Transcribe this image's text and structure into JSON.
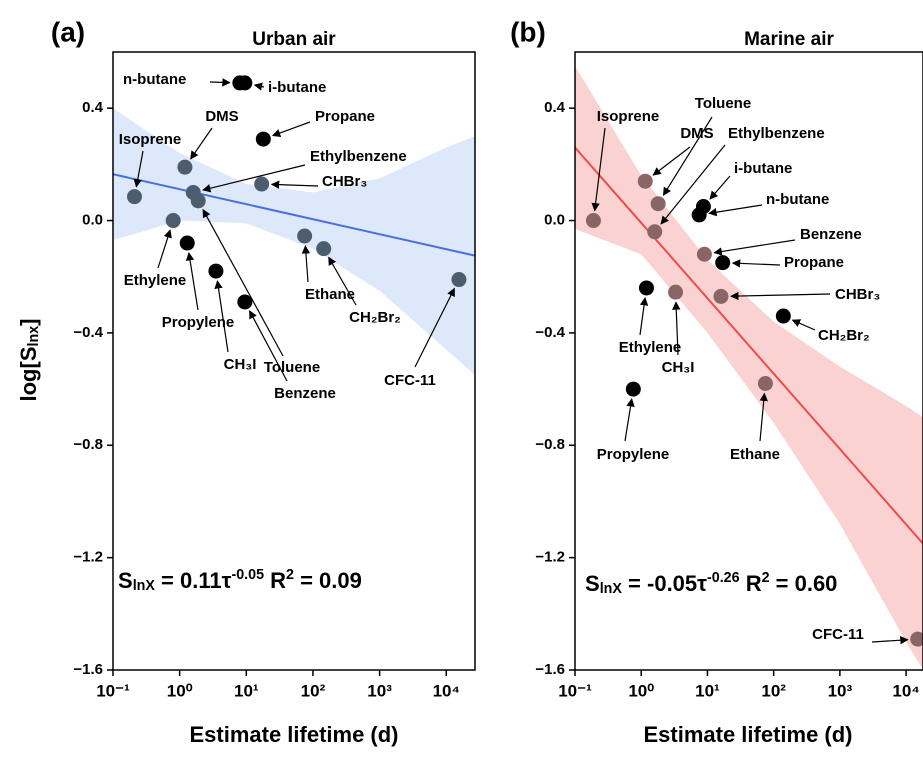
{
  "chart_data": [
    {
      "type": "scatter",
      "panel": "(a)",
      "title": "Urban air",
      "xlabel": "Estimate lifetime (d)",
      "ylabel": [
        "log[S",
        "lnx",
        "]"
      ],
      "xscale": "log",
      "xlim": [
        0.1,
        27000
      ],
      "ylim": [
        -1.6,
        0.6
      ],
      "xticks": [
        {
          "value": 0.1,
          "label": "10⁻¹"
        },
        {
          "value": 1,
          "label": "10⁰"
        },
        {
          "value": 10,
          "label": "10¹"
        },
        {
          "value": 100,
          "label": "10²"
        },
        {
          "value": 1000,
          "label": "10³"
        },
        {
          "value": 10000,
          "label": "10⁴"
        }
      ],
      "yticks": [
        0.4,
        {
          "value": 0,
          "label": "0.0"
        },
        {
          "value": -0.4,
          "label": "−0.4"
        },
        {
          "value": -0.8,
          "label": "−0.8"
        },
        {
          "value": -1.2,
          "label": "−1.2"
        },
        {
          "value": -1.6,
          "label": "−1.6"
        }
      ],
      "labels": [
        "n-butane",
        "i-butane",
        "Propane",
        "DMS",
        "Isoprene",
        "Ethylbenzene",
        "Toluene",
        "CHBr₃",
        "Ethylene",
        "Propylene",
        "CH₃I",
        "Benzene",
        "Ethane",
        "CH₂Br₂",
        "CFC-11"
      ],
      "x": [
        8,
        9.5,
        18,
        1.2,
        0.21,
        1.6,
        1.9,
        17,
        0.8,
        1.3,
        3.5,
        9.5,
        75,
        145,
        15500
      ],
      "values": [
        0.49,
        0.49,
        0.29,
        0.19,
        0.085,
        0.1,
        0.07,
        0.13,
        0.0,
        -0.08,
        -0.18,
        -0.29,
        -0.055,
        -0.1,
        -0.21
      ],
      "colors": [
        "#000000",
        "#000000",
        "#000000",
        "#4d5d70",
        "#4d5d70",
        "#4d5d70",
        "#4d5d70",
        "#4d5d70",
        "#4d5d70",
        "#000000",
        "#000000",
        "#000000",
        "#4d5d70",
        "#4d5d70",
        "#4d5d70"
      ],
      "fit": {
        "x": [
          0.1,
          27000
        ],
        "y": [
          0.165,
          -0.125
        ],
        "color": "#4a6ee0"
      },
      "band": {
        "x": [
          0.1,
          1,
          10,
          100,
          1000,
          10000,
          27000
        ],
        "upper": [
          0.4,
          0.24,
          0.13,
          0.1,
          0.15,
          0.26,
          0.3
        ],
        "lower": [
          -0.07,
          0.0,
          -0.01,
          -0.1,
          -0.25,
          -0.46,
          -0.55
        ],
        "color": "#dde8fb"
      },
      "equation": [
        "S",
        "lnX",
        " = 0.11τ",
        "-0.05",
        " R",
        "2",
        " = 0.09"
      ]
    },
    {
      "type": "scatter",
      "panel": "(b)",
      "title": "Marine air",
      "xlabel": "Estimate lifetime (d)",
      "xscale": "log",
      "xlim": [
        0.1,
        18000
      ],
      "ylim": [
        -1.6,
        0.6
      ],
      "xticks": [
        {
          "value": 0.1,
          "label": "10⁻¹"
        },
        {
          "value": 1,
          "label": "10⁰"
        },
        {
          "value": 10,
          "label": "10¹"
        },
        {
          "value": 100,
          "label": "10²"
        },
        {
          "value": 1000,
          "label": "10³"
        },
        {
          "value": 10000,
          "label": "10⁴"
        }
      ],
      "yticks": [
        0.4,
        {
          "value": 0,
          "label": "0.0"
        },
        {
          "value": -0.4,
          "label": "−0.4"
        },
        {
          "value": -0.8,
          "label": "−0.8"
        },
        {
          "value": -1.2,
          "label": "−1.2"
        },
        {
          "value": -1.6,
          "label": "−1.6"
        }
      ],
      "labels": [
        "Isoprene",
        "DMS",
        "Toluene",
        "Ethylbenzene",
        "i-butane",
        "n-butane",
        "Benzene",
        "Propane",
        "CHBr₃",
        "CH₂Br₂",
        "Ethylene",
        "CH₃I",
        "Ethane",
        "Propylene",
        "CFC-11"
      ],
      "x": [
        0.19,
        1.15,
        1.8,
        1.6,
        8.7,
        7.5,
        9,
        17,
        16,
        140,
        1.2,
        3.3,
        75,
        0.76,
        15000
      ],
      "values": [
        0.0,
        0.14,
        0.06,
        -0.04,
        0.05,
        0.02,
        -0.12,
        -0.15,
        -0.27,
        -0.34,
        -0.24,
        -0.255,
        -0.58,
        -0.6,
        -1.49
      ],
      "colors": [
        "#8a6565",
        "#8a6565",
        "#8a6565",
        "#8a6565",
        "#000000",
        "#000000",
        "#8a6565",
        "#000000",
        "#8a6565",
        "#000000",
        "#000000",
        "#8a6565",
        "#8a6565",
        "#000000",
        "#8a6565"
      ],
      "fit": {
        "x": [
          0.1,
          18000
        ],
        "y": [
          0.26,
          -1.15
        ],
        "color": "#f04a4a"
      },
      "band": {
        "x": [
          0.1,
          1,
          10,
          100,
          1000,
          10000,
          18000
        ],
        "upper": [
          0.55,
          0.16,
          -0.14,
          -0.36,
          -0.52,
          -0.66,
          -0.7
        ],
        "lower": [
          -0.03,
          -0.12,
          -0.4,
          -0.72,
          -1.08,
          -1.5,
          -1.6
        ],
        "color": "#fbd2d2"
      },
      "equation": [
        "S",
        "lnX",
        " = -0.05τ",
        "-0.26",
        " R",
        "2",
        " = 0.60"
      ]
    }
  ]
}
